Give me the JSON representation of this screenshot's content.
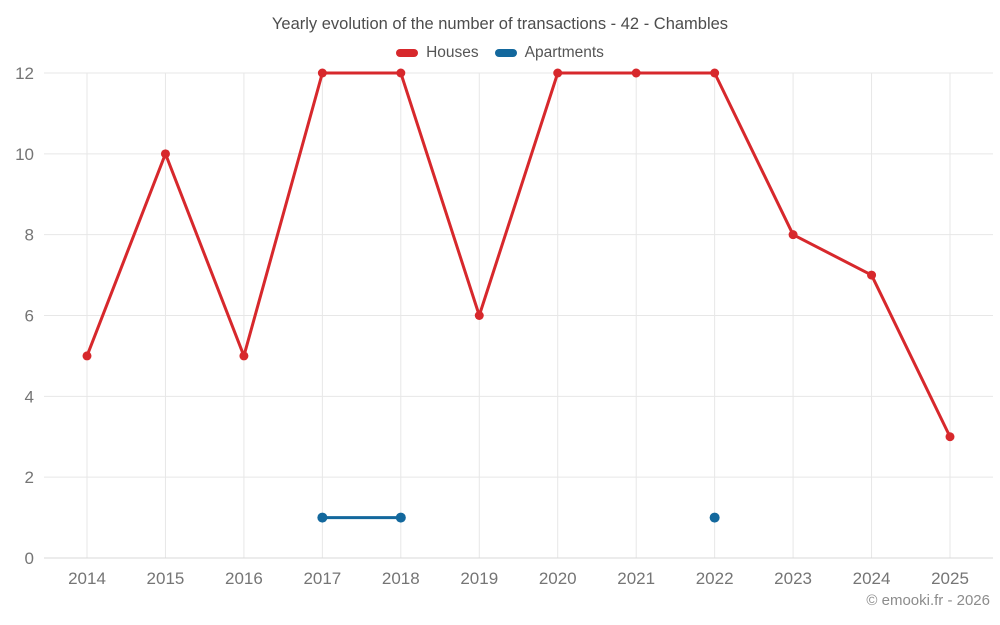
{
  "title": "Yearly evolution of the number of transactions - 42 - Chambles",
  "copyright": "© emooki.fr - 2026",
  "chart_data": {
    "type": "line",
    "title": "Yearly evolution of the number of transactions - 42 - Chambles",
    "categories": [
      "2014",
      "2015",
      "2016",
      "2017",
      "2018",
      "2019",
      "2020",
      "2021",
      "2022",
      "2023",
      "2024",
      "2025"
    ],
    "series": [
      {
        "name": "Houses",
        "color": "#d7282c",
        "values": [
          5,
          10,
          5,
          12,
          12,
          6,
          12,
          12,
          12,
          8,
          7,
          3
        ]
      },
      {
        "name": "Apartments",
        "color": "#13689d",
        "values": [
          null,
          null,
          null,
          1,
          1,
          null,
          null,
          null,
          1,
          null,
          null,
          null
        ]
      }
    ],
    "xlabel": "",
    "ylabel": "",
    "ylim": [
      0,
      12
    ],
    "yticks": [
      0,
      2,
      4,
      6,
      8,
      10,
      12
    ],
    "grid": true,
    "grid_color": "#e7e7e7",
    "zero_line_color": "#d9d9d9",
    "legend_position": "top"
  }
}
